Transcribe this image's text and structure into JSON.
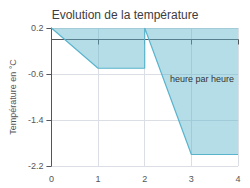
{
  "chart_data": {
    "type": "area",
    "title": "Evolution de la température",
    "xlabel": "heure par heure",
    "ylabel": "Température en °C",
    "x": [
      0,
      1,
      2,
      2,
      3,
      4
    ],
    "values": [
      0.2,
      -0.5,
      -0.5,
      0.2,
      -2.0,
      -2.0
    ],
    "xlim": [
      0,
      4
    ],
    "ylim": [
      -2.2,
      0.2
    ],
    "xticks": [
      0,
      1,
      2,
      3,
      4
    ],
    "yticks": [
      0.2,
      -0.6,
      -1.4,
      -2.2
    ],
    "grid": true,
    "color": "#5ab4cc"
  }
}
